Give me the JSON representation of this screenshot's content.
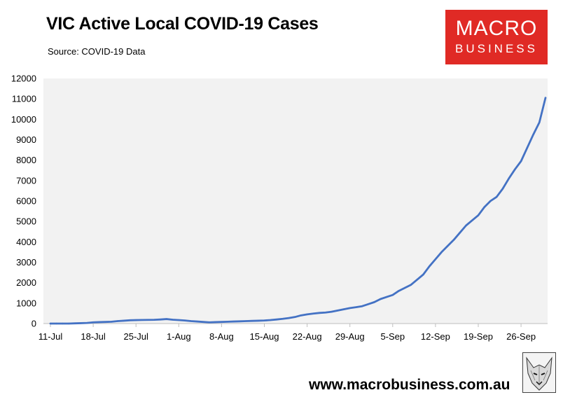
{
  "header": {
    "title": "VIC Active Local COVID-19 Cases",
    "source": "Source: COVID-19 Data"
  },
  "logo": {
    "line1": "MACRO",
    "line2": "BUSINESS",
    "color": "#e02a25"
  },
  "footer": {
    "website": "www.macrobusiness.com.au"
  },
  "chart_data": {
    "type": "line",
    "title": "VIC Active Local COVID-19 Cases",
    "xlabel": "",
    "ylabel": "",
    "ylim": [
      0,
      12000
    ],
    "y_ticks": [
      0,
      1000,
      2000,
      3000,
      4000,
      5000,
      6000,
      7000,
      8000,
      9000,
      10000,
      11000,
      12000
    ],
    "x_ticks": [
      "11-Jul",
      "18-Jul",
      "25-Jul",
      "1-Aug",
      "8-Aug",
      "15-Aug",
      "22-Aug",
      "29-Aug",
      "5-Sep",
      "12-Sep",
      "19-Sep",
      "26-Sep"
    ],
    "grid": false,
    "plot_background": "#f2f2f2",
    "line_color": "#4472c4",
    "series": [
      {
        "x": [
          "11-Jul",
          "12-Jul",
          "13-Jul",
          "14-Jul",
          "15-Jul",
          "16-Jul",
          "17-Jul",
          "18-Jul",
          "19-Jul",
          "20-Jul",
          "21-Jul",
          "22-Jul",
          "23-Jul",
          "24-Jul",
          "25-Jul",
          "26-Jul",
          "27-Jul",
          "28-Jul",
          "29-Jul",
          "30-Jul",
          "31-Jul",
          "1-Aug",
          "2-Aug",
          "3-Aug",
          "4-Aug",
          "5-Aug",
          "6-Aug",
          "7-Aug",
          "8-Aug",
          "9-Aug",
          "10-Aug",
          "11-Aug",
          "12-Aug",
          "13-Aug",
          "14-Aug",
          "15-Aug",
          "16-Aug",
          "17-Aug",
          "18-Aug",
          "19-Aug",
          "20-Aug",
          "21-Aug",
          "22-Aug",
          "23-Aug",
          "24-Aug",
          "25-Aug",
          "26-Aug",
          "27-Aug",
          "28-Aug",
          "29-Aug",
          "30-Aug",
          "31-Aug",
          "1-Sep",
          "2-Sep",
          "3-Sep",
          "4-Sep",
          "5-Sep",
          "6-Sep",
          "7-Sep",
          "8-Sep",
          "9-Sep",
          "10-Sep",
          "11-Sep",
          "12-Sep",
          "13-Sep",
          "14-Sep",
          "15-Sep",
          "16-Sep",
          "17-Sep",
          "18-Sep",
          "19-Sep",
          "20-Sep",
          "21-Sep",
          "22-Sep",
          "23-Sep",
          "24-Sep",
          "25-Sep",
          "26-Sep",
          "27-Sep",
          "28-Sep",
          "29-Sep",
          "30-Sep"
        ],
        "values": [
          0,
          0,
          0,
          0,
          10,
          20,
          30,
          60,
          70,
          80,
          90,
          120,
          140,
          160,
          170,
          175,
          180,
          185,
          200,
          220,
          190,
          170,
          150,
          120,
          100,
          80,
          60,
          70,
          80,
          90,
          100,
          110,
          120,
          130,
          140,
          150,
          170,
          200,
          230,
          270,
          320,
          400,
          450,
          490,
          520,
          540,
          580,
          640,
          700,
          760,
          800,
          850,
          950,
          1050,
          1200,
          1300,
          1400,
          1600,
          1750,
          1900,
          2150,
          2400,
          2800,
          3150,
          3500,
          3800,
          4100,
          4450,
          4800,
          5050,
          5300,
          5700,
          6000,
          6200,
          6600,
          7100,
          7550,
          7950,
          8600,
          9250,
          9850,
          11050
        ]
      }
    ]
  }
}
